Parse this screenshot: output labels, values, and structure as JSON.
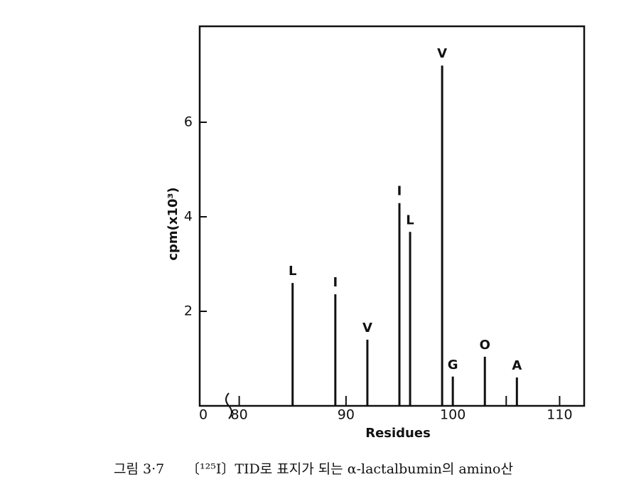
{
  "chart_data": {
    "type": "stem",
    "xlabel": "Residues",
    "ylabel": "cpm(x10³)",
    "x_origin_label": "0",
    "x": [
      85,
      89,
      92,
      95,
      96,
      99,
      100,
      103,
      106
    ],
    "values": [
      2.6,
      2.36,
      1.4,
      4.29,
      3.68,
      7.2,
      0.62,
      1.04,
      0.6
    ],
    "point_labels": [
      "L",
      "I",
      "V",
      "I",
      "L",
      "V",
      "G",
      "O",
      "A"
    ],
    "color": "#111111",
    "xlim": [
      76.3,
      112.3
    ],
    "ylim": [
      0,
      8.03
    ],
    "xticks": [
      80,
      90,
      100,
      110
    ],
    "xminor_ticks": [
      105
    ],
    "yticks": [
      2,
      4,
      6
    ]
  },
  "caption": {
    "figure": "그림 3·7",
    "text": "〔¹²⁵I〕TID로 표지가 되는 α-lactalbumin의 amino산"
  }
}
